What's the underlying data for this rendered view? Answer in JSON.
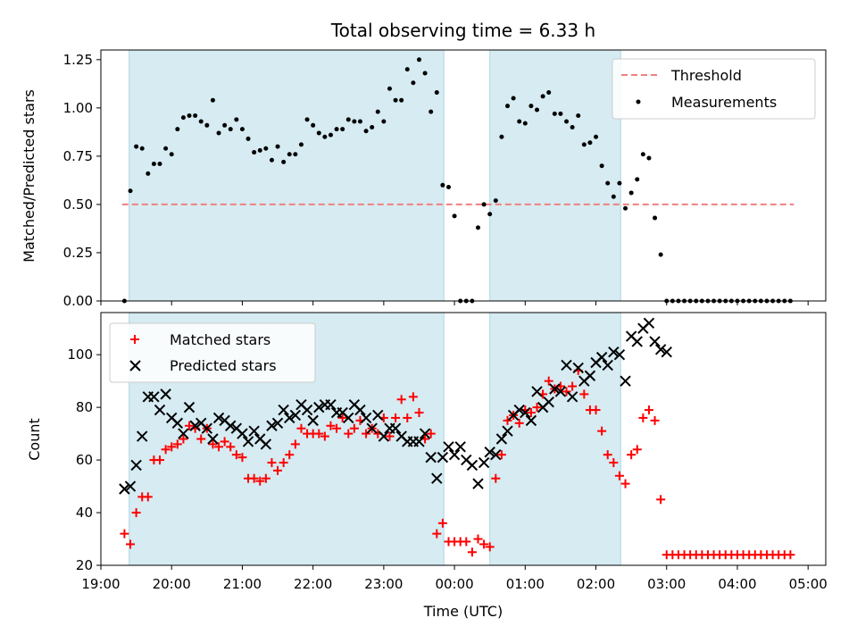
{
  "chart_data": [
    {
      "type": "scatter",
      "title": "Total observing time = 6.33 h",
      "xlabel": "",
      "ylabel": "Matched/Predicted stars",
      "xlim": [
        19.0,
        5.25
      ],
      "ylim": [
        0,
        1.3
      ],
      "yticks": [
        "0.00",
        "0.25",
        "0.50",
        "0.75",
        "1.00",
        "1.25"
      ],
      "shaded_intervals": [
        [
          19.4,
          23.85
        ],
        [
          0.5,
          2.35
        ]
      ],
      "legend_position": "top-right",
      "threshold": {
        "name": "Threshold",
        "value": 0.5,
        "x_range": [
          19.3,
          4.8
        ],
        "color": "#f08080"
      },
      "series": [
        {
          "name": "Measurements",
          "marker": "dot",
          "color": "#000000",
          "x": [
            "19:20",
            "19:25",
            "19:30",
            "19:35",
            "19:40",
            "19:45",
            "19:50",
            "19:55",
            "20:00",
            "20:05",
            "20:10",
            "20:15",
            "20:20",
            "20:25",
            "20:30",
            "20:35",
            "20:40",
            "20:45",
            "20:50",
            "20:55",
            "21:00",
            "21:05",
            "21:10",
            "21:15",
            "21:20",
            "21:25",
            "21:30",
            "21:35",
            "21:40",
            "21:45",
            "21:50",
            "21:55",
            "22:00",
            "22:05",
            "22:10",
            "22:15",
            "22:20",
            "22:25",
            "22:30",
            "22:35",
            "22:40",
            "22:45",
            "22:50",
            "22:55",
            "23:00",
            "23:05",
            "23:10",
            "23:15",
            "23:20",
            "23:25",
            "23:30",
            "23:35",
            "23:40",
            "23:45",
            "23:50",
            "23:55",
            "00:00",
            "00:05",
            "00:10",
            "00:15",
            "00:20",
            "00:25",
            "00:30",
            "00:35",
            "00:40",
            "00:45",
            "00:50",
            "00:55",
            "01:00",
            "01:05",
            "01:10",
            "01:15",
            "01:20",
            "01:25",
            "01:30",
            "01:35",
            "01:40",
            "01:45",
            "01:50",
            "01:55",
            "02:00",
            "02:05",
            "02:10",
            "02:15",
            "02:20",
            "02:25",
            "02:30",
            "02:35",
            "02:40",
            "02:45",
            "02:50",
            "02:55",
            "03:00",
            "03:05",
            "03:10",
            "03:15",
            "03:20",
            "03:25",
            "03:30",
            "03:35",
            "03:40",
            "03:45",
            "03:50",
            "03:55",
            "04:00",
            "04:05",
            "04:10",
            "04:15",
            "04:20",
            "04:25",
            "04:30",
            "04:35",
            "04:40",
            "04:45"
          ],
          "y": [
            0.0,
            0.57,
            0.8,
            0.79,
            0.66,
            0.71,
            0.71,
            0.79,
            0.76,
            0.89,
            0.95,
            0.96,
            0.96,
            0.93,
            0.91,
            1.04,
            0.87,
            0.91,
            0.89,
            0.94,
            0.89,
            0.84,
            0.77,
            0.78,
            0.79,
            0.73,
            0.8,
            0.72,
            0.76,
            0.76,
            0.81,
            0.94,
            0.91,
            0.87,
            0.85,
            0.86,
            0.89,
            0.89,
            0.94,
            0.93,
            0.93,
            0.88,
            0.9,
            0.98,
            0.93,
            1.1,
            1.04,
            1.04,
            1.2,
            1.13,
            1.25,
            1.18,
            0.98,
            1.08,
            0.6,
            0.59,
            0.44,
            0.0,
            0.0,
            0.0,
            0.38,
            0.5,
            0.45,
            0.52,
            0.85,
            1.01,
            1.05,
            0.93,
            0.92,
            1.01,
            0.99,
            1.06,
            1.08,
            0.97,
            0.97,
            0.93,
            0.9,
            0.96,
            0.81,
            0.82,
            0.85,
            0.7,
            0.61,
            0.54,
            0.61,
            0.48,
            0.56,
            0.63,
            0.76,
            0.74,
            0.43,
            0.24,
            0.0,
            0.0,
            0.0,
            0.0,
            0.0,
            0.0,
            0.0,
            0.0,
            0.0,
            0.0,
            0.0,
            0.0,
            0.0,
            0.0,
            0.0,
            0.0,
            0.0,
            0.0,
            0.0,
            0.0,
            0.0,
            0.0
          ]
        }
      ]
    },
    {
      "type": "scatter",
      "title": "",
      "xlabel": "Time (UTC)",
      "ylabel": "Count",
      "xlim": [
        19.0,
        5.25
      ],
      "ylim": [
        20,
        116
      ],
      "yticks": [
        "20",
        "40",
        "60",
        "80",
        "100"
      ],
      "xticks": [
        "19:00",
        "20:00",
        "21:00",
        "22:00",
        "23:00",
        "00:00",
        "01:00",
        "02:00",
        "03:00",
        "04:00",
        "05:00"
      ],
      "shaded_intervals": [
        [
          19.4,
          23.85
        ],
        [
          0.5,
          2.35
        ]
      ],
      "legend_position": "top-left",
      "series": [
        {
          "name": "Matched stars",
          "marker": "plus",
          "color": "#ff0000",
          "x": [
            "19:20",
            "19:25",
            "19:30",
            "19:35",
            "19:40",
            "19:45",
            "19:50",
            "19:55",
            "20:00",
            "20:05",
            "20:10",
            "20:15",
            "20:20",
            "20:25",
            "20:30",
            "20:35",
            "20:40",
            "20:45",
            "20:50",
            "20:55",
            "21:00",
            "21:05",
            "21:10",
            "21:15",
            "21:20",
            "21:25",
            "21:30",
            "21:35",
            "21:40",
            "21:45",
            "21:50",
            "21:55",
            "22:00",
            "22:05",
            "22:10",
            "22:15",
            "22:20",
            "22:25",
            "22:30",
            "22:35",
            "22:40",
            "22:45",
            "22:50",
            "22:55",
            "23:00",
            "23:05",
            "23:10",
            "23:15",
            "23:20",
            "23:25",
            "23:30",
            "23:35",
            "23:40",
            "23:45",
            "23:50",
            "23:55",
            "00:00",
            "00:05",
            "00:10",
            "00:15",
            "00:20",
            "00:25",
            "00:30",
            "00:35",
            "00:40",
            "00:45",
            "00:50",
            "00:55",
            "01:00",
            "01:05",
            "01:10",
            "01:15",
            "01:20",
            "01:25",
            "01:30",
            "01:35",
            "01:40",
            "01:45",
            "01:50",
            "01:55",
            "02:00",
            "02:05",
            "02:10",
            "02:15",
            "02:20",
            "02:25",
            "02:30",
            "02:35",
            "02:40",
            "02:45",
            "02:50",
            "02:55",
            "03:00",
            "03:05",
            "03:10",
            "03:15",
            "03:20",
            "03:25",
            "03:30",
            "03:35",
            "03:40",
            "03:45",
            "03:50",
            "03:55",
            "04:00",
            "04:05",
            "04:10",
            "04:15",
            "04:20",
            "04:25",
            "04:30",
            "04:35",
            "04:40",
            "04:45"
          ],
          "y": [
            32,
            28,
            40,
            46,
            46,
            60,
            60,
            64,
            65,
            66,
            68,
            73,
            72,
            68,
            72,
            66,
            65,
            67,
            65,
            62,
            61,
            53,
            53,
            52,
            53,
            59,
            56,
            59,
            62,
            66,
            72,
            70,
            70,
            70,
            69,
            73,
            72,
            76,
            70,
            72,
            75,
            70,
            72,
            70,
            76,
            69,
            76,
            83,
            76,
            84,
            78,
            68,
            70,
            32,
            36,
            29,
            29,
            29,
            29,
            25,
            30,
            28,
            27,
            53,
            62,
            75,
            77,
            74,
            79,
            78,
            80,
            85,
            90,
            87,
            88,
            86,
            88,
            94,
            85,
            79,
            79,
            71,
            62,
            59,
            54,
            51,
            62,
            64,
            76,
            79,
            75,
            45,
            24,
            24,
            24,
            24,
            24,
            24,
            24,
            24,
            24,
            24,
            24,
            24,
            24,
            24,
            24,
            24,
            24,
            24,
            24,
            24,
            24,
            24
          ]
        },
        {
          "name": "Predicted stars",
          "marker": "x",
          "color": "#000000",
          "x": [
            "19:20",
            "19:25",
            "19:30",
            "19:35",
            "19:40",
            "19:45",
            "19:50",
            "19:55",
            "20:00",
            "20:05",
            "20:10",
            "20:15",
            "20:20",
            "20:25",
            "20:30",
            "20:35",
            "20:40",
            "20:45",
            "20:50",
            "20:55",
            "21:00",
            "21:05",
            "21:10",
            "21:15",
            "21:20",
            "21:25",
            "21:30",
            "21:35",
            "21:40",
            "21:45",
            "21:50",
            "21:55",
            "22:00",
            "22:05",
            "22:10",
            "22:15",
            "22:20",
            "22:25",
            "22:30",
            "22:35",
            "22:40",
            "22:45",
            "22:50",
            "22:55",
            "23:00",
            "23:05",
            "23:10",
            "23:15",
            "23:20",
            "23:25",
            "23:30",
            "23:35",
            "23:40",
            "23:45",
            "23:50",
            "23:55",
            "00:00",
            "00:05",
            "00:10",
            "00:15",
            "00:20",
            "00:25",
            "00:30",
            "00:35",
            "00:40",
            "00:45",
            "00:50",
            "00:55",
            "01:00",
            "01:05",
            "01:10",
            "01:15",
            "01:20",
            "01:25",
            "01:30",
            "01:35",
            "01:40",
            "01:45",
            "01:50",
            "01:55",
            "02:00",
            "02:05",
            "02:10",
            "02:15",
            "02:20",
            "02:25",
            "02:30",
            "02:35",
            "02:40",
            "02:45",
            "02:50",
            "02:55",
            "03:00"
          ],
          "y": [
            49,
            50,
            58,
            69,
            84,
            84,
            79,
            85,
            76,
            74,
            70,
            80,
            73,
            74,
            72,
            68,
            76,
            75,
            73,
            72,
            70,
            67,
            71,
            68,
            66,
            73,
            74,
            79,
            76,
            77,
            81,
            79,
            75,
            80,
            81,
            81,
            78,
            78,
            76,
            81,
            79,
            76,
            72,
            77,
            69,
            72,
            72,
            69,
            67,
            67,
            67,
            70,
            61,
            53,
            61,
            65,
            62,
            65,
            60,
            58,
            51,
            59,
            63,
            62,
            68,
            71,
            77,
            79,
            78,
            75,
            86,
            80,
            82,
            87,
            86,
            96,
            84,
            95,
            90,
            92,
            97,
            99,
            96,
            101,
            100,
            90,
            107,
            105,
            110,
            112,
            105,
            102,
            101
          ]
        }
      ]
    }
  ]
}
